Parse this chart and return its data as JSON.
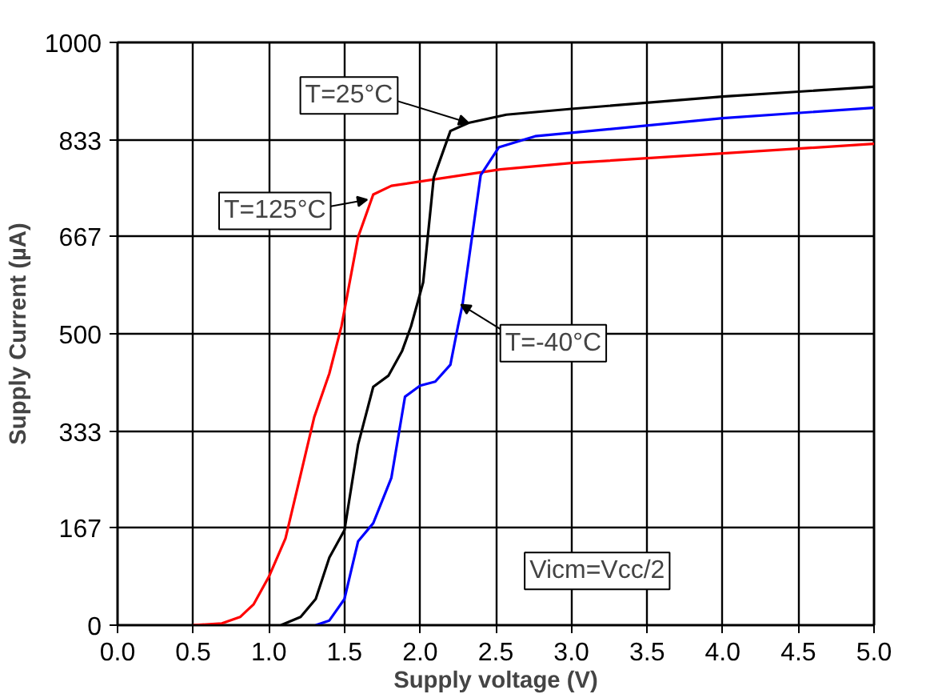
{
  "chart_data": {
    "type": "line",
    "xlabel": "Supply voltage (V)",
    "ylabel": "Supply Current (µA)",
    "xlim": [
      0,
      5
    ],
    "xticks": [
      {
        "value": 0,
        "label": "0.0"
      },
      {
        "value": 0.5,
        "label": "0.5"
      },
      {
        "value": 1,
        "label": "1.0"
      },
      {
        "value": 1.5,
        "label": "1.5"
      },
      {
        "value": 2,
        "label": "2.0"
      },
      {
        "value": 2.5,
        "label": "2.5"
      },
      {
        "value": 3,
        "label": "3.0"
      },
      {
        "value": 3.5,
        "label": "3.5"
      },
      {
        "value": 4,
        "label": "4.0"
      },
      {
        "value": 4.5,
        "label": "4.5"
      },
      {
        "value": 5,
        "label": "5.0"
      }
    ],
    "ylim": [
      0,
      1000
    ],
    "yticks": [
      0,
      167,
      333,
      500,
      667,
      833,
      1000
    ],
    "grid": true,
    "marker": "none",
    "line_style": "solid",
    "series": [
      {
        "color": "#ff0000",
        "x": [
          0.5,
          0.69,
          0.81,
          0.9,
          1.0,
          1.11,
          1.21,
          1.3,
          1.4,
          1.48,
          1.59,
          1.69,
          1.81,
          2.53,
          3.0,
          5.0
        ],
        "values": [
          0,
          3,
          14,
          36,
          83,
          149,
          258,
          357,
          432,
          513,
          666,
          739,
          754,
          782,
          793,
          826
        ]
      },
      {
        "color": "#000000",
        "x": [
          1.08,
          1.21,
          1.31,
          1.4,
          1.5,
          1.59,
          1.69,
          1.79,
          1.88,
          1.94,
          2.02,
          2.09,
          2.2,
          2.32,
          2.57,
          3.0,
          4.0,
          5.0
        ],
        "values": [
          0,
          14,
          45,
          116,
          163,
          310,
          409,
          428,
          470,
          513,
          588,
          768,
          848,
          862,
          876,
          886,
          907,
          924
        ]
      },
      {
        "color": "#0000ff",
        "x": [
          1.31,
          1.4,
          1.5,
          1.59,
          1.69,
          1.81,
          1.9,
          2.0,
          2.1,
          2.2,
          2.25,
          2.28,
          2.4,
          2.52,
          2.76,
          3.0,
          4.0,
          5.0
        ],
        "values": [
          0,
          8,
          45,
          144,
          175,
          253,
          392,
          411,
          418,
          447,
          513,
          550,
          772,
          820,
          839,
          845,
          870,
          888
        ]
      }
    ],
    "annotations": [
      {
        "text": "T=25°C",
        "x": 2.32,
        "y": 862
      },
      {
        "text": "T=125°C",
        "x": 1.65,
        "y": 730
      },
      {
        "text": "T=-40°C",
        "x": 2.27,
        "y": 550
      },
      "Vicm=Vcc/2"
    ]
  }
}
